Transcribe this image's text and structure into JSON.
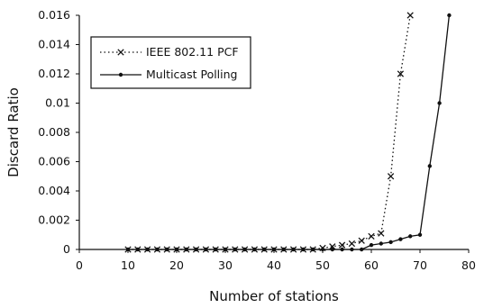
{
  "chart_data": {
    "type": "line",
    "xlabel": "Number of stations",
    "ylabel": "Discard Ratio",
    "xlim": [
      0,
      80
    ],
    "ylim": [
      0,
      0.016
    ],
    "x_ticks": [
      "0",
      "10",
      "20",
      "30",
      "40",
      "50",
      "60",
      "70",
      "80"
    ],
    "y_ticks": [
      "0",
      "0.002",
      "0.004",
      "0.006",
      "0.008",
      "0.01",
      "0.012",
      "0.014",
      "0.016"
    ],
    "grid": false,
    "legend_position": "top-left",
    "series": [
      {
        "name": "IEEE 802.11 PCF",
        "style": "dotted",
        "marker": "x",
        "x": [
          10,
          12,
          14,
          16,
          18,
          20,
          22,
          24,
          26,
          28,
          30,
          32,
          34,
          36,
          38,
          40,
          42,
          44,
          46,
          48,
          50,
          52,
          54,
          56,
          58,
          60,
          62,
          64,
          66,
          68
        ],
        "y": [
          0,
          0,
          0,
          0,
          0,
          0,
          0,
          0,
          0,
          0,
          0,
          0,
          0,
          0,
          0,
          0,
          0,
          0,
          0,
          0,
          0.0001,
          0.0002,
          0.0003,
          0.0004,
          0.0006,
          0.0009,
          0.0011,
          0.005,
          0.012,
          0.016
        ]
      },
      {
        "name": "Multicast Polling",
        "style": "solid",
        "marker": "dot",
        "x": [
          10,
          12,
          14,
          16,
          18,
          20,
          22,
          24,
          26,
          28,
          30,
          32,
          34,
          36,
          38,
          40,
          42,
          44,
          46,
          48,
          50,
          52,
          54,
          56,
          58,
          60,
          62,
          64,
          66,
          68,
          70,
          72,
          74,
          76
        ],
        "y": [
          0,
          0,
          0,
          0,
          0,
          0,
          0,
          0,
          0,
          0,
          0,
          0,
          0,
          0,
          0,
          0,
          0,
          0,
          0,
          0,
          0,
          0,
          0,
          0,
          0,
          0.0003,
          0.0004,
          0.0005,
          0.0007,
          0.0009,
          0.001,
          0.0057,
          0.01,
          0.016
        ]
      }
    ],
    "colors": {
      "line": "#111111",
      "axis": "#111111",
      "background": "#ffffff"
    }
  }
}
